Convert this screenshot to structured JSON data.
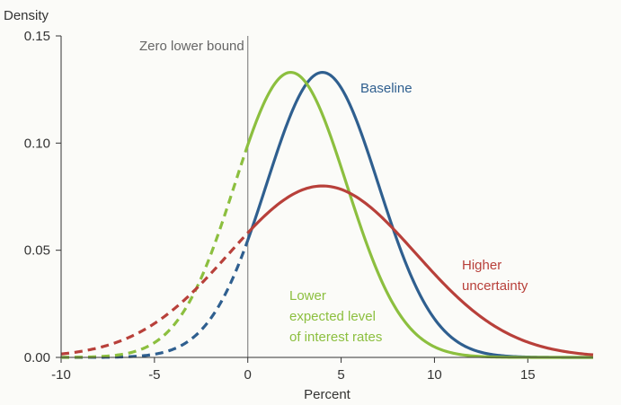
{
  "chart_data": {
    "type": "line",
    "title": "",
    "xlabel": "Percent",
    "ylabel": "Density",
    "xlim": [
      -10,
      18.5
    ],
    "ylim": [
      0,
      0.15
    ],
    "x_ticks": [
      -10,
      -5,
      0,
      5,
      10,
      15
    ],
    "x_tick_labels": [
      "-10",
      "-5",
      "0",
      "5",
      "10",
      "15"
    ],
    "y_ticks": [
      0,
      0.05,
      0.1,
      0.15
    ],
    "y_tick_labels": [
      "0.00",
      "0.05",
      "0.10",
      "0.15"
    ],
    "grid": false,
    "reference_line": {
      "x": 0,
      "label": "Zero lower bound",
      "color": "#888888"
    },
    "dashed_below_x": 0,
    "series": [
      {
        "name": "Baseline",
        "color": "#2f5f8f",
        "distribution": "normal",
        "mean": 4.0,
        "sd": 3.0,
        "peak_density": 0.133,
        "label_lines": [
          "Baseline"
        ]
      },
      {
        "name": "Lower expected level of interest rates",
        "color": "#8cbf3f",
        "distribution": "normal",
        "mean": 2.3,
        "sd": 3.0,
        "peak_density": 0.133,
        "label_lines": [
          "Lower",
          "expected level",
          "of interest rates"
        ]
      },
      {
        "name": "Higher uncertainty",
        "color": "#b8403a",
        "distribution": "normal",
        "mean": 4.0,
        "sd": 5.0,
        "peak_density": 0.08,
        "label_lines": [
          "Higher",
          "uncertainty"
        ]
      }
    ]
  }
}
